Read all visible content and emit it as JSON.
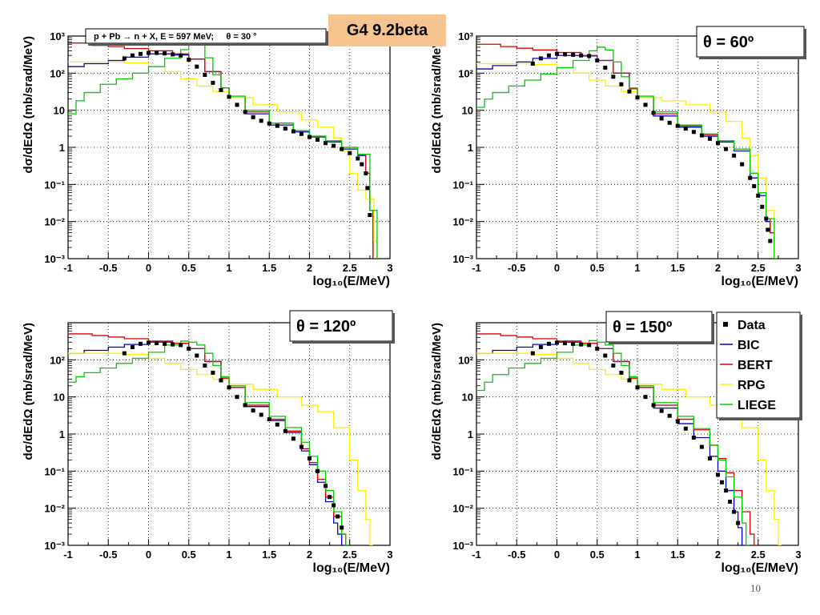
{
  "tag": "G4 9.2beta",
  "page_number": "10",
  "colors": {
    "Data": "#000000",
    "BIC": "#0000cc",
    "BERT": "#dd0000",
    "RPG": "#ffee00",
    "LIEGE": "#00cc00"
  },
  "legend": [
    {
      "name": "Data",
      "marker": "square"
    },
    {
      "name": "BIC",
      "marker": "line"
    },
    {
      "name": "BERT",
      "marker": "line"
    },
    {
      "name": "RPG",
      "marker": "line"
    },
    {
      "name": "LIEGE",
      "marker": "line"
    }
  ],
  "chart_data": [
    {
      "type": "line",
      "title": "p + Pb → n + X, E = 597 MeV;     θ = 30 °",
      "title_style": "box",
      "xlabel": "log10(E/MeV)",
      "ylabel": "dσ/dEdΩ (mb/srad/MeV)",
      "xlim": [
        -1,
        3
      ],
      "ylim": [
        0.001,
        1000
      ],
      "yscale": "log",
      "grid": true,
      "xticks": [
        "-1",
        "-0.5",
        "0",
        "0.5",
        "1",
        "1.5",
        "2",
        "2.5",
        "3"
      ],
      "yticks": [
        "10⁻³",
        "10⁻²",
        "10⁻¹",
        "1",
        "10",
        "10²",
        "10³"
      ],
      "series": [
        {
          "name": "BIC",
          "x": [
            -1,
            -0.8,
            -0.5,
            -0.3,
            0,
            0.3,
            0.5,
            0.7,
            0.9,
            1.0,
            1.2,
            1.5,
            1.8,
            2.0,
            2.2,
            2.4,
            2.6,
            2.7,
            2.75
          ],
          "y": [
            150,
            180,
            220,
            270,
            330,
            310,
            240,
            110,
            40,
            22,
            8,
            4,
            2.6,
            1.9,
            1.4,
            0.9,
            0.6,
            0.2,
            0.02
          ]
        },
        {
          "name": "BERT",
          "x": [
            -1,
            -0.7,
            -0.5,
            -0.3,
            0,
            0.3,
            0.5,
            0.7,
            0.9,
            1.0,
            1.2,
            1.5,
            1.8,
            2.0,
            2.2,
            2.4,
            2.6,
            2.7,
            2.75
          ],
          "y": [
            650,
            560,
            520,
            460,
            400,
            330,
            240,
            110,
            40,
            22,
            9,
            4.5,
            2.8,
            2,
            1.5,
            1.0,
            0.65,
            0.2,
            0.02
          ]
        },
        {
          "name": "RPG",
          "x": [
            -1,
            -0.5,
            -0.3,
            0,
            0.2,
            0.4,
            0.6,
            0.8,
            1.0,
            1.3,
            1.6,
            1.9,
            2.1,
            2.3,
            2.4,
            2.5,
            2.6,
            2.7,
            2.8
          ],
          "y": [
            200,
            200,
            190,
            150,
            110,
            70,
            45,
            32,
            22,
            14,
            9,
            5.5,
            3.5,
            1.8,
            0.8,
            0.2,
            0.07,
            0.04,
            0.003
          ]
        },
        {
          "name": "LIEGE",
          "x": [
            -1,
            -0.9,
            -0.8,
            -0.6,
            -0.4,
            -0.2,
            0,
            0.2,
            0.4,
            0.5,
            0.6,
            0.7,
            0.8,
            0.9,
            1.0,
            1.2,
            1.5,
            1.8,
            2.0,
            2.2,
            2.4,
            2.6,
            2.75,
            2.8
          ],
          "y": [
            8,
            18,
            30,
            50,
            70,
            100,
            150,
            250,
            430,
            700,
            650,
            260,
            90,
            40,
            24,
            10,
            4.5,
            2.8,
            2,
            1.5,
            1.0,
            0.65,
            0.02,
            0.02
          ]
        }
      ],
      "data_points": {
        "x": [
          -0.3,
          -0.2,
          -0.1,
          0,
          0.1,
          0.2,
          0.3,
          0.4,
          0.5,
          0.6,
          0.7,
          0.8,
          0.9,
          1.0,
          1.1,
          1.2,
          1.3,
          1.4,
          1.5,
          1.6,
          1.7,
          1.8,
          1.9,
          2.0,
          2.1,
          2.2,
          2.3,
          2.4,
          2.5,
          2.6,
          2.65,
          2.7,
          2.72,
          2.75
        ],
        "y": [
          250,
          300,
          330,
          350,
          350,
          340,
          320,
          300,
          230,
          150,
          90,
          55,
          35,
          23,
          14,
          9,
          6.5,
          5.2,
          4.4,
          3.8,
          3.2,
          2.7,
          2.3,
          1.9,
          1.6,
          1.3,
          1.1,
          0.9,
          0.7,
          0.5,
          0.35,
          0.2,
          0.08,
          0.015
        ]
      }
    },
    {
      "type": "line",
      "title": "θ = 60º",
      "title_style": "box",
      "xlabel": "log10(E/MeV)",
      "ylabel": "dσ/dEdΩ (mb/srad/MeV)",
      "xlim": [
        -1,
        3
      ],
      "ylim": [
        0.001,
        1000
      ],
      "yscale": "log",
      "grid": true,
      "xticks": [
        "-1",
        "-0.5",
        "0",
        "0.5",
        "1",
        "1.5",
        "2",
        "2.5",
        "3"
      ],
      "yticks": [
        "10⁻³",
        "10⁻²",
        "10⁻¹",
        "1",
        "10",
        "10²",
        "10³"
      ],
      "series": [
        {
          "name": "BIC",
          "x": [
            -1,
            -0.8,
            -0.5,
            -0.3,
            0,
            0.3,
            0.5,
            0.7,
            0.9,
            1.0,
            1.2,
            1.5,
            1.8,
            2.0,
            2.2,
            2.4,
            2.5,
            2.6,
            2.65,
            2.7
          ],
          "y": [
            130,
            160,
            200,
            250,
            300,
            290,
            220,
            100,
            38,
            22,
            7,
            3.5,
            2,
            1.4,
            0.8,
            0.15,
            0.05,
            0.01,
            0.005,
            0.001
          ]
        },
        {
          "name": "BERT",
          "x": [
            -1,
            -0.7,
            -0.5,
            -0.3,
            0,
            0.3,
            0.5,
            0.7,
            0.9,
            1.0,
            1.2,
            1.5,
            1.8,
            2.0,
            2.2,
            2.4,
            2.5,
            2.6,
            2.65,
            2.7
          ],
          "y": [
            600,
            520,
            470,
            420,
            360,
            300,
            220,
            100,
            38,
            22,
            8,
            3.8,
            2.2,
            1.5,
            0.9,
            0.2,
            0.06,
            0.012,
            0.005,
            0.001
          ]
        },
        {
          "name": "RPG",
          "x": [
            -1,
            -0.5,
            -0.3,
            0,
            0.2,
            0.4,
            0.6,
            0.8,
            1.0,
            1.3,
            1.6,
            1.9,
            2.1,
            2.3,
            2.4,
            2.5,
            2.6,
            2.7
          ],
          "y": [
            180,
            180,
            170,
            140,
            100,
            65,
            45,
            32,
            22,
            18,
            14,
            9,
            5,
            1.8,
            0.6,
            0.15,
            0.02,
            0.001
          ]
        },
        {
          "name": "LIEGE",
          "x": [
            -1,
            -0.9,
            -0.8,
            -0.6,
            -0.4,
            -0.2,
            0,
            0.2,
            0.4,
            0.5,
            0.6,
            0.7,
            0.8,
            0.9,
            1.0,
            1.2,
            1.5,
            1.8,
            2.0,
            2.2,
            2.4,
            2.5,
            2.6,
            2.7
          ],
          "y": [
            12,
            20,
            30,
            45,
            65,
            95,
            140,
            220,
            400,
            500,
            420,
            200,
            80,
            40,
            24,
            9,
            4,
            2.3,
            1.5,
            0.9,
            0.2,
            0.06,
            0.012,
            0.001
          ]
        }
      ],
      "data_points": {
        "x": [
          -0.3,
          -0.2,
          -0.1,
          0,
          0.1,
          0.2,
          0.3,
          0.4,
          0.5,
          0.6,
          0.7,
          0.8,
          0.9,
          1.0,
          1.1,
          1.2,
          1.3,
          1.4,
          1.5,
          1.6,
          1.7,
          1.8,
          1.9,
          2.0,
          2.1,
          2.2,
          2.3,
          2.4,
          2.45,
          2.5,
          2.55,
          2.6,
          2.62,
          2.65
        ],
        "y": [
          180,
          250,
          300,
          330,
          320,
          310,
          300,
          290,
          220,
          140,
          80,
          50,
          32,
          22,
          14,
          8.5,
          6,
          4.6,
          3.8,
          3.2,
          2.6,
          2.1,
          1.7,
          1.3,
          0.9,
          0.6,
          0.35,
          0.15,
          0.09,
          0.05,
          0.025,
          0.012,
          0.006,
          0.003
        ]
      }
    },
    {
      "type": "line",
      "title": "θ = 120º",
      "title_style": "box",
      "xlabel": "log10(E/MeV)",
      "ylabel": "dσ/dEdΩ (mb/srad/MeV)",
      "xlim": [
        -1,
        3
      ],
      "ylim": [
        0.001,
        1000
      ],
      "yscale": "log",
      "grid": true,
      "xticks": [
        "-1",
        "-0.5",
        "0",
        "0.5",
        "1",
        "1.5",
        "2",
        "2.5",
        "3"
      ],
      "yticks": [
        "10⁻³",
        "10⁻²",
        "10⁻¹",
        "1",
        "10",
        "10²",
        ""
      ],
      "series": [
        {
          "name": "BIC",
          "x": [
            -1,
            -0.8,
            -0.5,
            -0.3,
            0,
            0.3,
            0.5,
            0.7,
            0.9,
            1.0,
            1.2,
            1.5,
            1.7,
            1.9,
            2.0,
            2.1,
            2.2,
            2.3,
            2.35,
            2.4
          ],
          "y": [
            150,
            180,
            220,
            260,
            300,
            280,
            200,
            90,
            32,
            18,
            5.5,
            2.3,
            1.1,
            0.35,
            0.15,
            0.05,
            0.015,
            0.004,
            0.002,
            0.001
          ]
        },
        {
          "name": "BERT",
          "x": [
            -1,
            -0.7,
            -0.5,
            -0.3,
            0,
            0.3,
            0.5,
            0.7,
            0.9,
            1.0,
            1.2,
            1.5,
            1.7,
            1.9,
            2.0,
            2.1,
            2.2,
            2.3,
            2.4,
            2.45
          ],
          "y": [
            500,
            450,
            410,
            370,
            320,
            280,
            200,
            90,
            32,
            18,
            6,
            2.5,
            1.2,
            0.4,
            0.17,
            0.06,
            0.02,
            0.006,
            0.002,
            0.001
          ]
        },
        {
          "name": "RPG",
          "x": [
            -1,
            -0.5,
            -0.3,
            0,
            0.2,
            0.4,
            0.6,
            0.8,
            1.0,
            1.3,
            1.6,
            1.9,
            2.1,
            2.3,
            2.5,
            2.6,
            2.7,
            2.75
          ],
          "y": [
            150,
            150,
            140,
            110,
            80,
            55,
            40,
            30,
            22,
            16,
            10,
            6,
            4,
            1.5,
            0.2,
            0.03,
            0.005,
            0.001
          ]
        },
        {
          "name": "LIEGE",
          "x": [
            -1,
            -0.9,
            -0.8,
            -0.6,
            -0.4,
            -0.2,
            0,
            0.2,
            0.4,
            0.5,
            0.6,
            0.7,
            0.8,
            0.9,
            1.0,
            1.2,
            1.5,
            1.7,
            1.9,
            2.0,
            2.1,
            2.2,
            2.3,
            2.4,
            2.45
          ],
          "y": [
            25,
            35,
            45,
            60,
            80,
            110,
            160,
            250,
            320,
            300,
            250,
            150,
            70,
            35,
            20,
            7,
            3,
            1.5,
            0.6,
            0.25,
            0.1,
            0.03,
            0.008,
            0.002,
            0.001
          ]
        }
      ],
      "data_points": {
        "x": [
          -0.3,
          -0.2,
          -0.1,
          0,
          0.1,
          0.2,
          0.3,
          0.4,
          0.5,
          0.6,
          0.7,
          0.8,
          0.9,
          1.0,
          1.1,
          1.2,
          1.3,
          1.4,
          1.5,
          1.6,
          1.7,
          1.8,
          1.9,
          2.0,
          2.1,
          2.2,
          2.25,
          2.3,
          2.35,
          2.4
        ],
        "y": [
          150,
          220,
          270,
          290,
          280,
          270,
          260,
          250,
          200,
          130,
          70,
          45,
          28,
          18,
          10,
          6,
          4.3,
          3.3,
          2.5,
          1.8,
          1.2,
          0.75,
          0.45,
          0.22,
          0.1,
          0.04,
          0.02,
          0.012,
          0.006,
          0.003
        ]
      }
    },
    {
      "type": "line",
      "title": "θ = 150º",
      "title_style": "box",
      "xlabel": "log10(E/MeV)",
      "ylabel": "dσ/dEdΩ (mb/srad/MeV)",
      "xlim": [
        -1,
        3
      ],
      "ylim": [
        0.001,
        1000
      ],
      "yscale": "log",
      "grid": true,
      "legend_position": "top-right",
      "xticks": [
        "-1",
        "-0.5",
        "0",
        "0.5",
        "1",
        "1.5",
        "2",
        "2.5",
        "3"
      ],
      "yticks": [
        "10⁻³",
        "10⁻²",
        "10⁻¹",
        "1",
        "10",
        "10²",
        ""
      ],
      "series": [
        {
          "name": "BIC",
          "x": [
            -1,
            -0.8,
            -0.5,
            -0.3,
            0,
            0.3,
            0.5,
            0.7,
            0.9,
            1.0,
            1.2,
            1.5,
            1.7,
            1.9,
            2.0,
            2.1,
            2.2,
            2.25,
            2.3
          ],
          "y": [
            150,
            180,
            220,
            260,
            300,
            280,
            200,
            90,
            32,
            18,
            5,
            1.9,
            0.8,
            0.25,
            0.1,
            0.03,
            0.008,
            0.003,
            0.001
          ]
        },
        {
          "name": "BERT",
          "x": [
            -1,
            -0.7,
            -0.5,
            -0.3,
            0,
            0.3,
            0.5,
            0.7,
            0.9,
            1.0,
            1.2,
            1.5,
            1.7,
            1.9,
            2.0,
            2.1,
            2.2,
            2.3,
            2.4,
            2.45
          ],
          "y": [
            500,
            450,
            410,
            370,
            320,
            280,
            200,
            90,
            32,
            18,
            6,
            2.5,
            1.3,
            0.5,
            0.22,
            0.09,
            0.03,
            0.008,
            0.002,
            0.001
          ]
        },
        {
          "name": "RPG",
          "x": [
            -1,
            -0.5,
            -0.3,
            0,
            0.2,
            0.4,
            0.6,
            0.8,
            1.0,
            1.3,
            1.6,
            1.9,
            2.1,
            2.3,
            2.5,
            2.6,
            2.7,
            2.75
          ],
          "y": [
            150,
            150,
            140,
            110,
            80,
            55,
            40,
            30,
            22,
            16,
            10,
            6,
            4,
            1.5,
            0.2,
            0.03,
            0.005,
            0.001
          ]
        },
        {
          "name": "LIEGE",
          "x": [
            -1,
            -0.9,
            -0.8,
            -0.6,
            -0.4,
            -0.2,
            0,
            0.2,
            0.4,
            0.5,
            0.6,
            0.7,
            0.8,
            0.9,
            1.0,
            1.2,
            1.5,
            1.7,
            1.9,
            2.0,
            2.1,
            2.2,
            2.3,
            2.35
          ],
          "y": [
            15,
            25,
            40,
            60,
            80,
            110,
            160,
            250,
            330,
            300,
            250,
            150,
            70,
            35,
            20,
            7,
            3,
            1.4,
            0.5,
            0.2,
            0.07,
            0.02,
            0.004,
            0.001
          ]
        }
      ],
      "data_points": {
        "x": [
          -0.3,
          -0.2,
          -0.1,
          0,
          0.1,
          0.2,
          0.3,
          0.4,
          0.5,
          0.6,
          0.7,
          0.8,
          0.9,
          1.0,
          1.1,
          1.2,
          1.3,
          1.4,
          1.5,
          1.6,
          1.7,
          1.8,
          1.9,
          2.0,
          2.05,
          2.1,
          2.15,
          2.2,
          2.25
        ],
        "y": [
          150,
          220,
          270,
          290,
          280,
          270,
          260,
          250,
          200,
          130,
          70,
          45,
          28,
          18,
          10,
          6,
          4.2,
          3.1,
          2.2,
          1.4,
          0.8,
          0.45,
          0.22,
          0.08,
          0.05,
          0.03,
          0.015,
          0.008,
          0.004
        ]
      }
    }
  ]
}
